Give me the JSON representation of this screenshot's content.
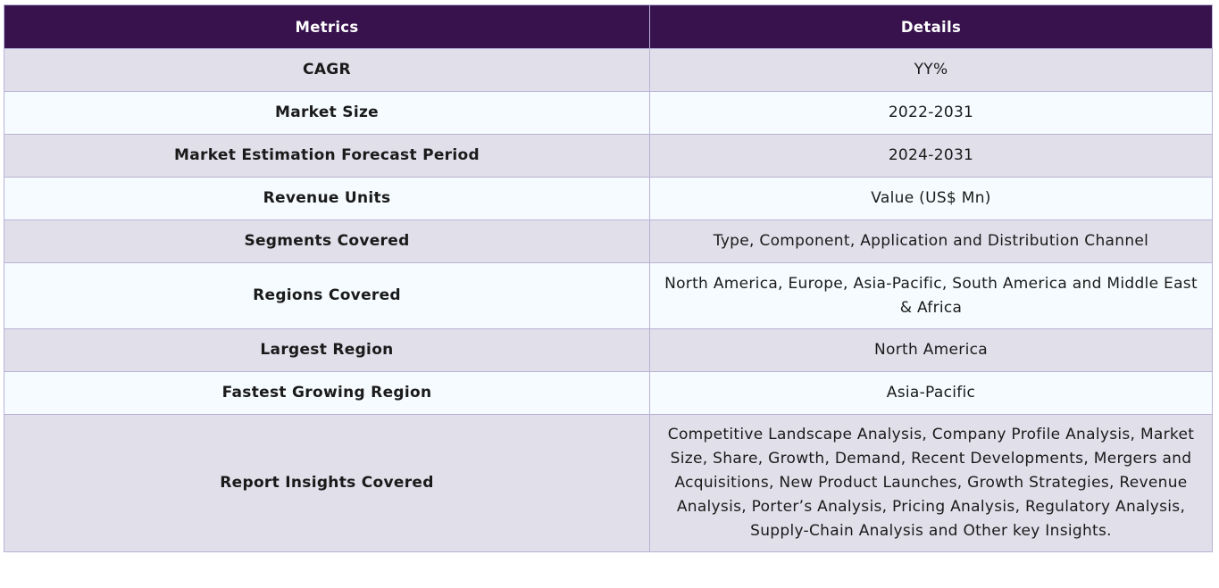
{
  "table": {
    "headers": {
      "metrics": "Metrics",
      "details": "Details"
    },
    "rows": [
      {
        "metric": "CAGR",
        "detail": "YY%"
      },
      {
        "metric": "Market Size",
        "detail": "2022-2031"
      },
      {
        "metric": "Market Estimation Forecast Period",
        "detail": "2024-2031"
      },
      {
        "metric": "Revenue Units",
        "detail": "Value (US$ Mn)"
      },
      {
        "metric": "Segments Covered",
        "detail": "Type, Component, Application and Distribution Channel"
      },
      {
        "metric": "Regions Covered",
        "detail": "North America, Europe, Asia-Pacific, South America and Middle East & Africa"
      },
      {
        "metric": "Largest Region",
        "detail": "North America"
      },
      {
        "metric": "Fastest Growing Region",
        "detail": "Asia-Pacific"
      },
      {
        "metric": "Report Insights Covered",
        "detail": "Competitive Landscape Analysis, Company Profile Analysis, Market Size, Share, Growth, Demand, Recent Developments, Mergers and Acquisitions, New Product Launches, Growth Strategies, Revenue Analysis, Porter’s Analysis, Pricing Analysis, Regulatory Analysis, Supply-Chain Analysis and Other key Insights."
      }
    ]
  },
  "colors": {
    "header_bg": "#37124d",
    "row_odd_bg": "#e1dfea",
    "row_even_bg": "#f5fbfe",
    "border": "#b9b2d6"
  }
}
